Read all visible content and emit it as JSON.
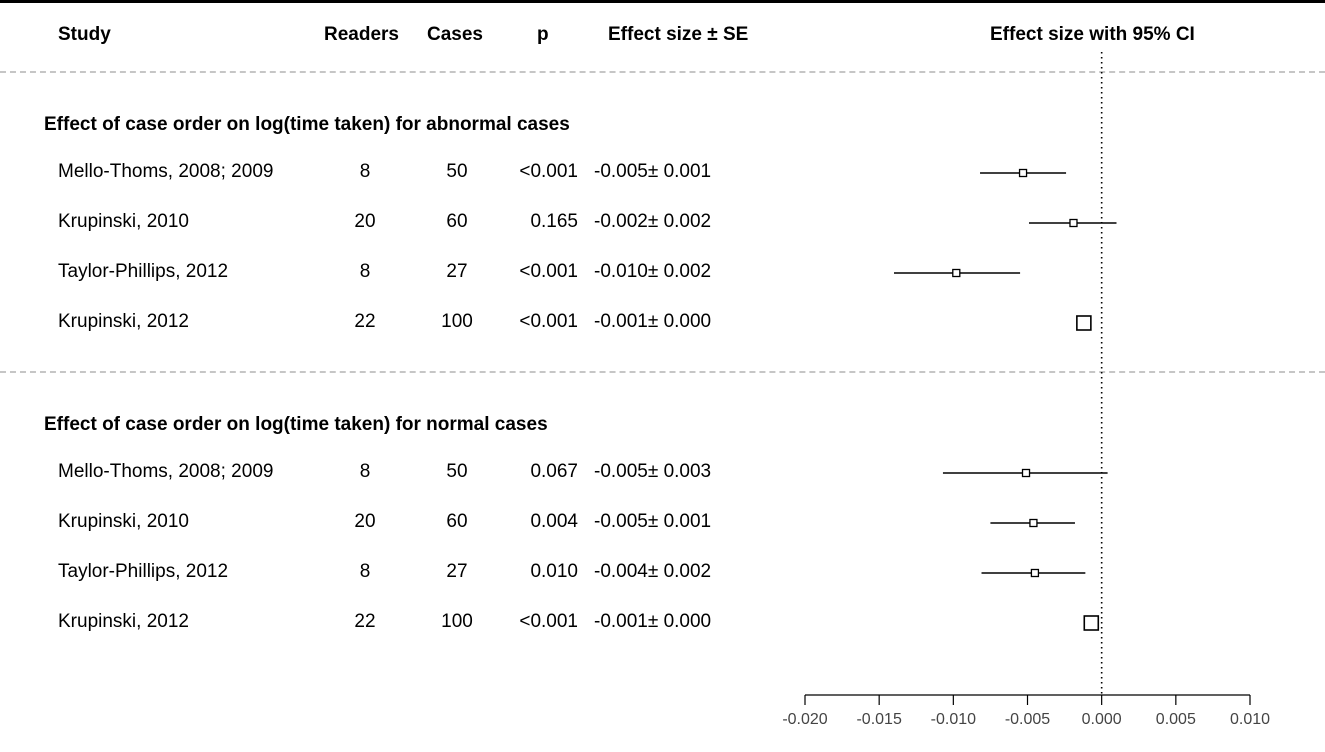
{
  "headers": {
    "study": "Study",
    "readers": "Readers",
    "cases": "Cases",
    "p": "p",
    "effect_se": "Effect size ± SE",
    "effect_ci": "Effect size with 95% CI"
  },
  "groups": [
    {
      "title": "Effect of case order on log(time taken) for abnormal cases",
      "rows": [
        {
          "study": "Mello-Thoms, 2008; 2009",
          "readers": "8",
          "cases": "50",
          "p": "<0.001",
          "effect_se": "-0.005± 0.001",
          "est": -0.0053,
          "lo": -0.0082,
          "hi": -0.0024,
          "box": "small"
        },
        {
          "study": "Krupinski, 2010",
          "readers": "20",
          "cases": "60",
          "p": "0.165",
          "effect_se": "-0.002± 0.002",
          "est": -0.0019,
          "lo": -0.0049,
          "hi": 0.001,
          "box": "small"
        },
        {
          "study": "Taylor-Phillips, 2012",
          "readers": "8",
          "cases": "27",
          "p": "<0.001",
          "effect_se": "-0.010± 0.002",
          "est": -0.0098,
          "lo": -0.014,
          "hi": -0.0055,
          "box": "small"
        },
        {
          "study": "Krupinski, 2012",
          "readers": "22",
          "cases": "100",
          "p": "<0.001",
          "effect_se": "-0.001± 0.000",
          "est": -0.0012,
          "lo": -0.0012,
          "hi": -0.0012,
          "box": "large"
        }
      ]
    },
    {
      "title": "Effect of case order on log(time taken) for normal cases",
      "rows": [
        {
          "study": "Mello-Thoms, 2008; 2009",
          "readers": "8",
          "cases": "50",
          "p": "0.067",
          "effect_se": "-0.005± 0.003",
          "est": -0.0051,
          "lo": -0.0107,
          "hi": 0.0004,
          "box": "small"
        },
        {
          "study": "Krupinski, 2010",
          "readers": "20",
          "cases": "60",
          "p": "0.004",
          "effect_se": "-0.005± 0.001",
          "est": -0.0046,
          "lo": -0.0075,
          "hi": -0.0018,
          "box": "small"
        },
        {
          "study": "Taylor-Phillips, 2012",
          "readers": "8",
          "cases": "27",
          "p": "0.010",
          "effect_se": "-0.004± 0.002",
          "est": -0.0045,
          "lo": -0.0081,
          "hi": -0.0011,
          "box": "small"
        },
        {
          "study": "Krupinski, 2012",
          "readers": "22",
          "cases": "100",
          "p": "<0.001",
          "effect_se": "-0.001± 0.000",
          "est": -0.0007,
          "lo": -0.0007,
          "hi": -0.0007,
          "box": "large"
        }
      ]
    }
  ],
  "chart_data": {
    "type": "forest",
    "title": "",
    "xlabel": "",
    "ylabel": "",
    "xlim": [
      -0.02,
      0.01
    ],
    "ticks": [
      -0.02,
      -0.015,
      -0.01,
      -0.005,
      0.0,
      0.005,
      0.01
    ],
    "tick_labels": [
      "-0.020",
      "-0.015",
      "-0.010",
      "-0.005",
      "0.000",
      "0.005",
      "0.010"
    ],
    "reference_line": 0.0,
    "grid": false
  }
}
